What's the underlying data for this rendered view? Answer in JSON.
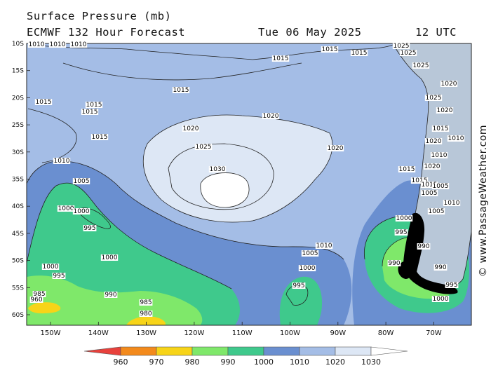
{
  "header": {
    "title": "Surface Pressure (mb)",
    "model_line": "ECMWF 132 Hour Forecast",
    "date": "Tue 06 May 2025",
    "time": "12 UTC"
  },
  "credit": "© www.PassageWeather.com",
  "map": {
    "units": "mb",
    "lat_labels": [
      "10S",
      "15S",
      "20S",
      "25S",
      "30S",
      "35S",
      "40S",
      "45S",
      "50S",
      "55S",
      "60S"
    ],
    "lon_labels": [
      "150W",
      "140W",
      "130W",
      "120W",
      "110W",
      "100W",
      "90W",
      "80W",
      "70W"
    ],
    "isobar_labels": [
      {
        "text": "1010"
      },
      {
        "text": "1010"
      },
      {
        "text": "1010"
      },
      {
        "text": "1015"
      },
      {
        "text": "1015"
      },
      {
        "text": "1015"
      },
      {
        "text": "1015"
      },
      {
        "text": "1015"
      },
      {
        "text": "1015"
      },
      {
        "text": "1015"
      },
      {
        "text": "1015"
      },
      {
        "text": "1020"
      },
      {
        "text": "1020"
      },
      {
        "text": "1020"
      },
      {
        "text": "1025"
      },
      {
        "text": "1030"
      },
      {
        "text": "1010"
      },
      {
        "text": "1005"
      },
      {
        "text": "1000"
      },
      {
        "text": "1000"
      },
      {
        "text": "995"
      },
      {
        "text": "1000"
      },
      {
        "text": "1020"
      },
      {
        "text": "1015"
      },
      {
        "text": "1010"
      },
      {
        "text": "1005"
      },
      {
        "text": "1000"
      },
      {
        "text": "1000"
      },
      {
        "text": "995"
      },
      {
        "text": "990"
      },
      {
        "text": "985"
      },
      {
        "text": "960"
      },
      {
        "text": "985"
      },
      {
        "text": "980"
      },
      {
        "text": "995"
      },
      {
        "text": "1000"
      },
      {
        "text": "995"
      },
      {
        "text": "990"
      },
      {
        "text": "990"
      },
      {
        "text": "990"
      },
      {
        "text": "995"
      },
      {
        "text": "1000"
      },
      {
        "text": "1025"
      },
      {
        "text": "1025"
      },
      {
        "text": "1025"
      },
      {
        "text": "1020"
      },
      {
        "text": "1025"
      },
      {
        "text": "1020"
      },
      {
        "text": "1015"
      },
      {
        "text": "1010"
      },
      {
        "text": "1020"
      },
      {
        "text": "1010"
      },
      {
        "text": "1015"
      },
      {
        "text": "1015"
      },
      {
        "text": "1005"
      },
      {
        "text": "1005"
      },
      {
        "text": "1005"
      },
      {
        "text": "1010"
      }
    ]
  },
  "legend": {
    "ticks": [
      "960",
      "970",
      "980",
      "990",
      "1000",
      "1010",
      "1020",
      "1030"
    ],
    "colors": [
      "#e8413c",
      "#f38a1c",
      "#f7d418",
      "#7fe86a",
      "#3fc98c",
      "#6a8fd0",
      "#a4bde6",
      "#dde7f5"
    ]
  }
}
